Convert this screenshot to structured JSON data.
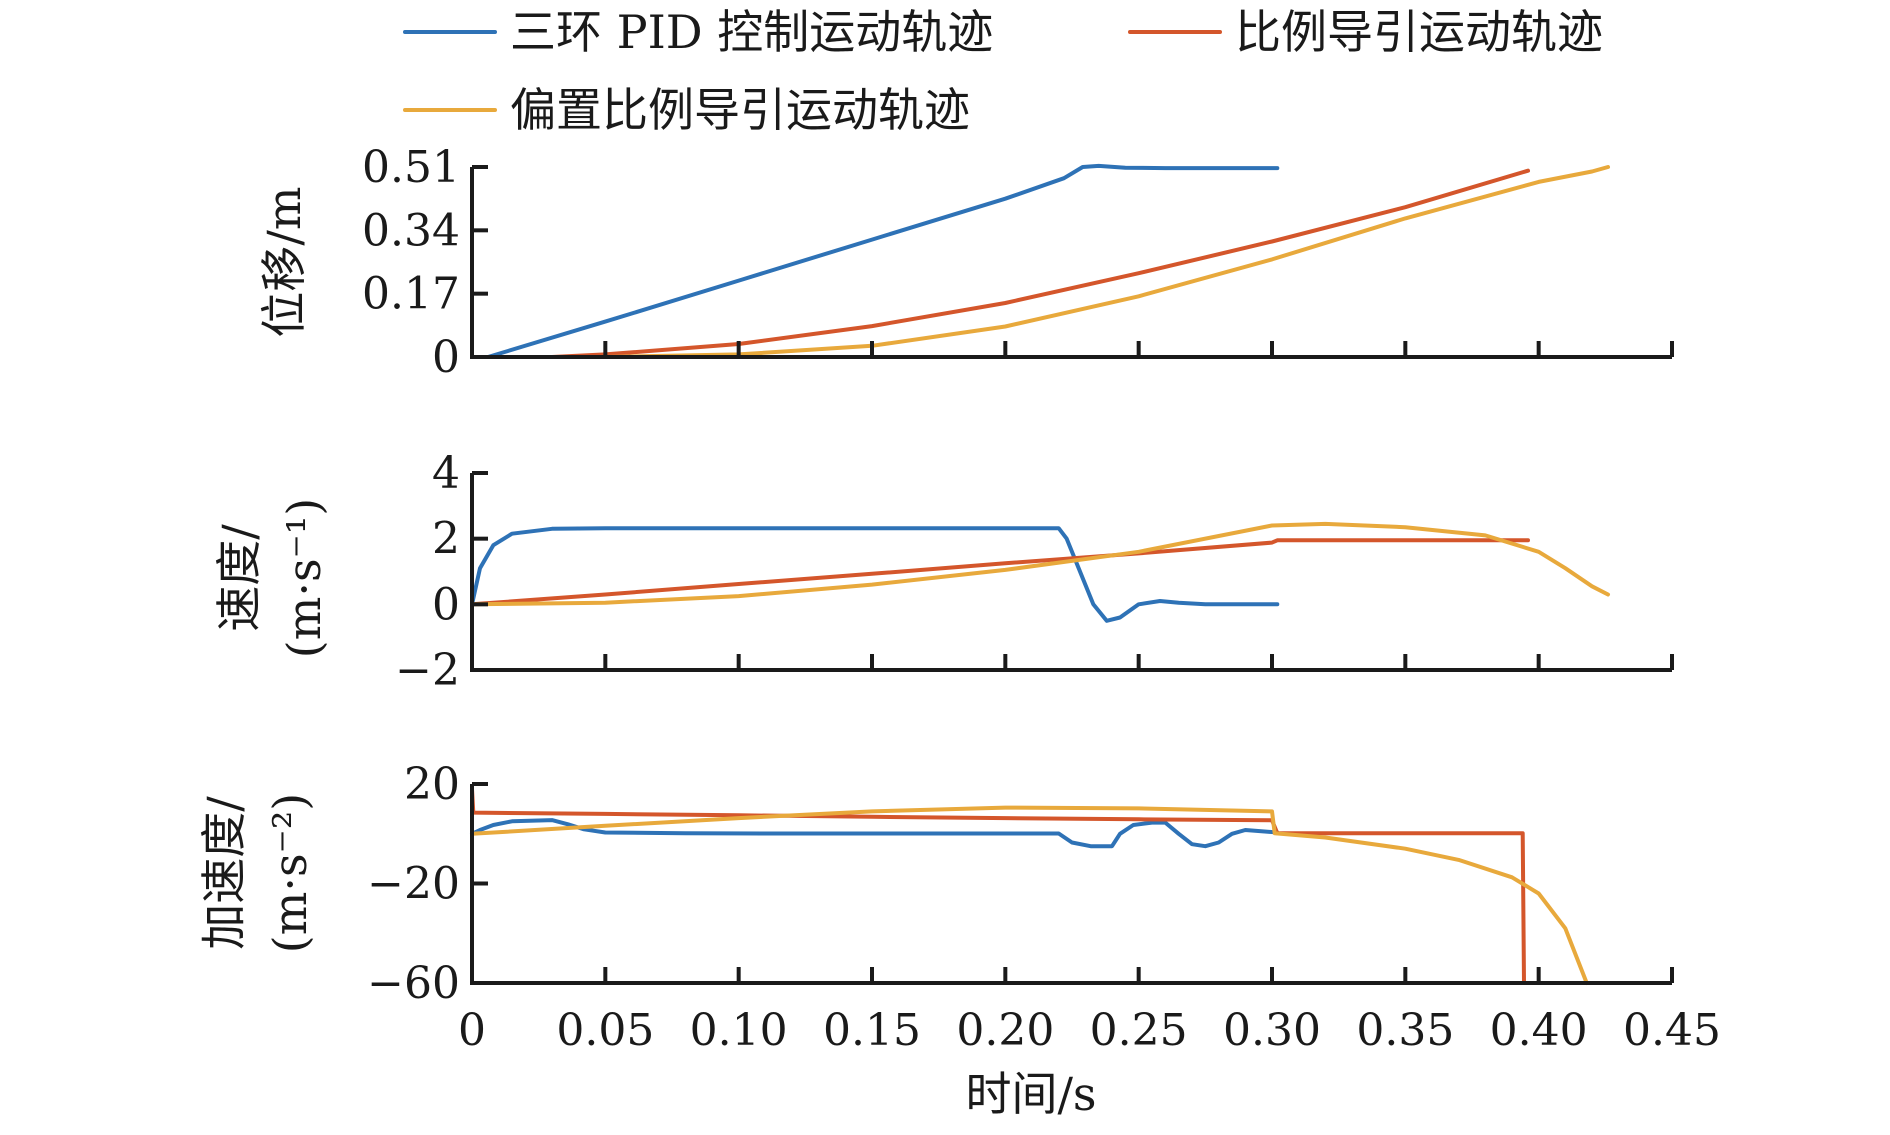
{
  "chart_data": {
    "type": "line",
    "legend": {
      "placement": "top",
      "entries": [
        {
          "name": "三环 PID 控制运动轨迹",
          "color": "#2e72b6"
        },
        {
          "name": "比例导引运动轨迹",
          "color": "#d4562b"
        },
        {
          "name": "偏置比例导引运动轨迹",
          "color": "#e8a93c"
        }
      ]
    },
    "x_axis": {
      "label": "时间/s",
      "range": [
        0,
        0.45
      ],
      "ticks": [
        0,
        0.05,
        0.1,
        0.15,
        0.2,
        0.25,
        0.3,
        0.35,
        0.4,
        0.45
      ],
      "tick_labels": [
        "0",
        "0.05",
        "0.10",
        "0.15",
        "0.20",
        "0.25",
        "0.30",
        "0.35",
        "0.40",
        "0.45"
      ]
    },
    "grid": false,
    "panels": [
      {
        "id": "displacement",
        "ylabel": "位移/m",
        "ylim": [
          0,
          0.51
        ],
        "yticks": [
          0,
          0.17,
          0.34,
          0.51
        ],
        "ytick_labels": [
          "0",
          "0.17",
          "0.34",
          "0.51"
        ],
        "series": [
          {
            "name": "三环 PID 控制运动轨迹",
            "color": "#2e72b6",
            "points": [
              [
                0.006,
                0
              ],
              [
                0.05,
                0.095
              ],
              [
                0.1,
                0.205
              ],
              [
                0.15,
                0.315
              ],
              [
                0.2,
                0.425
              ],
              [
                0.222,
                0.48
              ],
              [
                0.229,
                0.51
              ],
              [
                0.235,
                0.513
              ],
              [
                0.245,
                0.508
              ],
              [
                0.26,
                0.507
              ],
              [
                0.28,
                0.507
              ],
              [
                0.302,
                0.507
              ]
            ]
          },
          {
            "name": "比例导引运动轨迹",
            "color": "#d4562b",
            "points": [
              [
                0,
                0
              ],
              [
                0.03,
                0
              ],
              [
                0.05,
                0.007
              ],
              [
                0.1,
                0.035
              ],
              [
                0.15,
                0.083
              ],
              [
                0.2,
                0.145
              ],
              [
                0.25,
                0.225
              ],
              [
                0.3,
                0.31
              ],
              [
                0.35,
                0.402
              ],
              [
                0.396,
                0.5
              ]
            ]
          },
          {
            "name": "偏置比例导引运动轨迹",
            "color": "#e8a93c",
            "points": [
              [
                0,
                0
              ],
              [
                0.05,
                0
              ],
              [
                0.1,
                0.007
              ],
              [
                0.15,
                0.03
              ],
              [
                0.2,
                0.082
              ],
              [
                0.25,
                0.163
              ],
              [
                0.3,
                0.262
              ],
              [
                0.35,
                0.372
              ],
              [
                0.4,
                0.47
              ],
              [
                0.42,
                0.498
              ],
              [
                0.426,
                0.51
              ]
            ]
          }
        ]
      },
      {
        "id": "velocity",
        "ylabel": "速度/",
        "ylabel_unit": "(m·s⁻¹)",
        "ylim": [
          -2,
          4
        ],
        "yticks": [
          -2,
          0,
          2,
          4
        ],
        "ytick_labels": [
          "−2",
          "0",
          "2",
          "4"
        ],
        "series": [
          {
            "name": "三环 PID 控制运动轨迹",
            "color": "#2e72b6",
            "points": [
              [
                0,
                0
              ],
              [
                0.003,
                1.1
              ],
              [
                0.008,
                1.8
              ],
              [
                0.015,
                2.15
              ],
              [
                0.03,
                2.3
              ],
              [
                0.05,
                2.32
              ],
              [
                0.1,
                2.32
              ],
              [
                0.15,
                2.32
              ],
              [
                0.2,
                2.32
              ],
              [
                0.22,
                2.32
              ],
              [
                0.223,
                2.0
              ],
              [
                0.228,
                1.0
              ],
              [
                0.233,
                0.0
              ],
              [
                0.238,
                -0.5
              ],
              [
                0.243,
                -0.4
              ],
              [
                0.25,
                0.0
              ],
              [
                0.258,
                0.1
              ],
              [
                0.265,
                0.05
              ],
              [
                0.275,
                0.0
              ],
              [
                0.285,
                0.0
              ],
              [
                0.302,
                0.0
              ]
            ]
          },
          {
            "name": "比例导引运动轨迹",
            "color": "#d4562b",
            "points": [
              [
                0,
                0
              ],
              [
                0.05,
                0.3
              ],
              [
                0.1,
                0.62
              ],
              [
                0.15,
                0.93
              ],
              [
                0.2,
                1.25
              ],
              [
                0.25,
                1.55
              ],
              [
                0.3,
                1.88
              ],
              [
                0.302,
                1.95
              ],
              [
                0.35,
                1.95
              ],
              [
                0.396,
                1.95
              ]
            ]
          },
          {
            "name": "偏置比例导引运动轨迹",
            "color": "#e8a93c",
            "points": [
              [
                0,
                0
              ],
              [
                0.05,
                0.05
              ],
              [
                0.1,
                0.25
              ],
              [
                0.15,
                0.6
              ],
              [
                0.2,
                1.05
              ],
              [
                0.25,
                1.6
              ],
              [
                0.3,
                2.4
              ],
              [
                0.32,
                2.45
              ],
              [
                0.35,
                2.35
              ],
              [
                0.38,
                2.1
              ],
              [
                0.4,
                1.6
              ],
              [
                0.41,
                1.1
              ],
              [
                0.42,
                0.55
              ],
              [
                0.426,
                0.3
              ]
            ]
          }
        ]
      },
      {
        "id": "acceleration",
        "ylabel": "加速度/",
        "ylabel_unit": "(m·s⁻²)",
        "ylim": [
          -60,
          20
        ],
        "yticks": [
          -60,
          -20,
          20
        ],
        "ytick_labels": [
          "−60",
          "−20",
          "20"
        ],
        "series": [
          {
            "name": "三环 PID 控制运动轨迹",
            "color": "#2e72b6",
            "points": [
              [
                0,
                0
              ],
              [
                0.003,
                1.5
              ],
              [
                0.008,
                3.5
              ],
              [
                0.015,
                5.0
              ],
              [
                0.03,
                5.5
              ],
              [
                0.036,
                3.8
              ],
              [
                0.042,
                1.8
              ],
              [
                0.05,
                0.5
              ],
              [
                0.08,
                0.2
              ],
              [
                0.12,
                0.1
              ],
              [
                0.16,
                0.1
              ],
              [
                0.2,
                0.1
              ],
              [
                0.22,
                0.1
              ],
              [
                0.225,
                -3.5
              ],
              [
                0.232,
                -5.0
              ],
              [
                0.24,
                -5.0
              ],
              [
                0.243,
                0.0
              ],
              [
                0.248,
                3.5
              ],
              [
                0.255,
                4.5
              ],
              [
                0.26,
                4.5
              ],
              [
                0.265,
                0.0
              ],
              [
                0.27,
                -4.2
              ],
              [
                0.275,
                -5.0
              ],
              [
                0.28,
                -3.5
              ],
              [
                0.285,
                0.0
              ],
              [
                0.29,
                1.5
              ],
              [
                0.302,
                0.5
              ]
            ]
          },
          {
            "name": "比例导引运动轨迹",
            "color": "#d4562b",
            "points": [
              [
                0,
                18
              ],
              [
                0.0005,
                8.5
              ],
              [
                0.05,
                8.0
              ],
              [
                0.1,
                7.4
              ],
              [
                0.15,
                6.8
              ],
              [
                0.2,
                6.3
              ],
              [
                0.25,
                5.8
              ],
              [
                0.3,
                5.4
              ],
              [
                0.302,
                0.2
              ],
              [
                0.35,
                0.2
              ],
              [
                0.394,
                0.2
              ],
              [
                0.3945,
                -60
              ]
            ]
          },
          {
            "name": "偏置比例导引运动轨迹",
            "color": "#e8a93c",
            "points": [
              [
                0,
                0
              ],
              [
                0.05,
                3.2
              ],
              [
                0.1,
                6.3
              ],
              [
                0.15,
                9.0
              ],
              [
                0.2,
                10.5
              ],
              [
                0.25,
                10.2
              ],
              [
                0.3,
                9.0
              ],
              [
                0.301,
                0.2
              ],
              [
                0.32,
                -1.5
              ],
              [
                0.35,
                -6.0
              ],
              [
                0.37,
                -10.5
              ],
              [
                0.39,
                -17.5
              ],
              [
                0.4,
                -24.0
              ],
              [
                0.41,
                -38.0
              ],
              [
                0.418,
                -60.0
              ]
            ]
          }
        ]
      }
    ]
  }
}
